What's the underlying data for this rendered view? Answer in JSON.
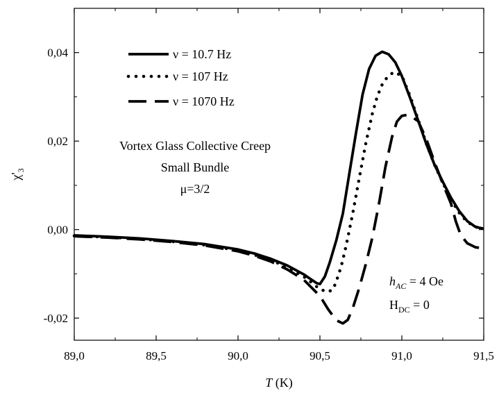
{
  "chart_data": {
    "type": "line",
    "xlim": [
      89.0,
      91.5
    ],
    "ylim": [
      -0.025,
      0.05
    ],
    "x_ticks": [
      89.0,
      89.5,
      90.0,
      90.5,
      91.0,
      91.5
    ],
    "x_tick_labels": [
      "89,0",
      "89,5",
      "90,0",
      "90,5",
      "91,0",
      "91,5"
    ],
    "y_ticks": [
      -0.02,
      0.0,
      0.02,
      0.04
    ],
    "y_tick_labels": [
      "-0,02",
      "0,00",
      "0,02",
      "0,04"
    ],
    "xlabel": {
      "symbol": "T",
      "unit": " (K)"
    },
    "ylabel": {
      "base": "χ'",
      "sub": "3"
    },
    "grid": false,
    "legend_position": "top-left",
    "series": [
      {
        "name": "ν = 10.7 Hz",
        "style": "solid",
        "x": [
          89.0,
          89.2,
          89.4,
          89.6,
          89.8,
          90.0,
          90.1,
          90.2,
          90.3,
          90.4,
          90.44,
          90.48,
          90.5,
          90.53,
          90.56,
          90.6,
          90.64,
          90.68,
          90.72,
          90.76,
          90.8,
          90.84,
          90.88,
          90.92,
          90.96,
          91.0,
          91.05,
          91.1,
          91.15,
          91.2,
          91.25,
          91.3,
          91.35,
          91.4,
          91.45,
          91.5
        ],
        "y": [
          -0.0013,
          -0.0016,
          -0.002,
          -0.0026,
          -0.0033,
          -0.0045,
          -0.0054,
          -0.0066,
          -0.0081,
          -0.0101,
          -0.0111,
          -0.0121,
          -0.0123,
          -0.0106,
          -0.0074,
          -0.0024,
          0.0036,
          0.0128,
          0.0218,
          0.0305,
          0.0363,
          0.0393,
          0.0402,
          0.0396,
          0.0378,
          0.0347,
          0.0298,
          0.0246,
          0.0193,
          0.0146,
          0.0108,
          0.0072,
          0.0042,
          0.0019,
          0.0006,
          0.0002
        ]
      },
      {
        "name": "ν = 107 Hz",
        "style": "dotted",
        "x": [
          89.0,
          89.2,
          89.4,
          89.6,
          89.8,
          90.0,
          90.1,
          90.2,
          90.3,
          90.4,
          90.45,
          90.5,
          90.55,
          90.58,
          90.6,
          90.63,
          90.66,
          90.7,
          90.74,
          90.78,
          90.82,
          90.85,
          90.88,
          90.91,
          90.95,
          91.0,
          91.05,
          91.1,
          91.15,
          91.2,
          91.25,
          91.3,
          91.35,
          91.4,
          91.45,
          91.5
        ],
        "y": [
          -0.0014,
          -0.0017,
          -0.0021,
          -0.0027,
          -0.0035,
          -0.0047,
          -0.0057,
          -0.0069,
          -0.0085,
          -0.0106,
          -0.012,
          -0.0135,
          -0.0141,
          -0.0135,
          -0.0117,
          -0.0083,
          -0.0036,
          0.0036,
          0.0116,
          0.0195,
          0.0262,
          0.0301,
          0.0328,
          0.0344,
          0.0356,
          0.0348,
          0.0302,
          0.0248,
          0.0194,
          0.0146,
          0.0106,
          0.0068,
          0.0038,
          0.0017,
          0.0006,
          0.0002
        ]
      },
      {
        "name": "ν = 1070  Hz",
        "style": "dashed",
        "x": [
          89.0,
          89.2,
          89.4,
          89.6,
          89.8,
          90.0,
          90.1,
          90.2,
          90.3,
          90.4,
          90.5,
          90.55,
          90.6,
          90.64,
          90.67,
          90.7,
          90.74,
          90.78,
          90.82,
          90.86,
          90.9,
          90.94,
          90.97,
          91.0,
          91.03,
          91.06,
          91.1,
          91.15,
          91.2,
          91.25,
          91.3,
          91.33,
          91.36,
          91.4,
          91.45,
          91.5
        ],
        "y": [
          -0.0015,
          -0.0018,
          -0.0022,
          -0.0028,
          -0.0036,
          -0.0049,
          -0.0059,
          -0.0072,
          -0.009,
          -0.0113,
          -0.015,
          -0.018,
          -0.0205,
          -0.0212,
          -0.0204,
          -0.0178,
          -0.0132,
          -0.0078,
          -0.0018,
          0.0058,
          0.0142,
          0.0209,
          0.0244,
          0.0257,
          0.0259,
          0.0255,
          0.0245,
          0.0204,
          0.0152,
          0.0104,
          0.0059,
          0.0018,
          -0.0013,
          -0.0031,
          -0.004,
          -0.0042
        ]
      }
    ],
    "annotations": [
      "Vortex Glass Collective Creep",
      "Small Bundle",
      "μ=3/2"
    ],
    "conditions": {
      "h_ac": {
        "base": "h",
        "sub": "AC",
        "value": " = 4 Oe"
      },
      "h_dc": {
        "base": "H",
        "sub": "DC",
        "value": " = 0"
      }
    }
  }
}
